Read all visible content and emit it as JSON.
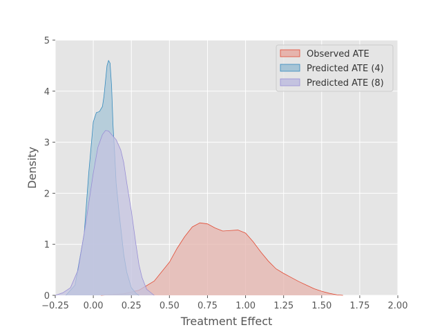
{
  "chart_data": {
    "type": "area",
    "title": "",
    "xlabel": "Treatment Effect",
    "ylabel": "Density",
    "xlim": [
      -0.25,
      2.0
    ],
    "ylim": [
      0,
      5
    ],
    "xticks": [
      -0.25,
      0.0,
      0.25,
      0.5,
      0.75,
      1.0,
      1.25,
      1.5,
      1.75,
      2.0
    ],
    "xtick_labels": [
      "−0.25",
      "0.00",
      "0.25",
      "0.50",
      "0.75",
      "1.00",
      "1.25",
      "1.50",
      "1.75",
      "2.00"
    ],
    "yticks": [
      0,
      1,
      2,
      3,
      4,
      5
    ],
    "ytick_labels": [
      "0",
      "1",
      "2",
      "3",
      "4",
      "5"
    ],
    "grid": true,
    "background": "#e5e5e5",
    "legend_position": "top-right",
    "series": [
      {
        "name": "Observed ATE",
        "color": "#e24a33",
        "fill": "#e6b4ad",
        "x": [
          0.05,
          0.2,
          0.3,
          0.4,
          0.5,
          0.55,
          0.6,
          0.65,
          0.7,
          0.75,
          0.8,
          0.85,
          0.9,
          0.95,
          1.0,
          1.05,
          1.1,
          1.15,
          1.2,
          1.25,
          1.3,
          1.35,
          1.4,
          1.45,
          1.5,
          1.55,
          1.6,
          1.64
        ],
        "values": [
          0.0,
          0.03,
          0.1,
          0.28,
          0.65,
          0.92,
          1.15,
          1.34,
          1.42,
          1.4,
          1.32,
          1.26,
          1.27,
          1.28,
          1.22,
          1.05,
          0.85,
          0.67,
          0.52,
          0.43,
          0.35,
          0.27,
          0.2,
          0.13,
          0.08,
          0.04,
          0.01,
          0.0
        ]
      },
      {
        "name": "Predicted ATE (4)",
        "color": "#348abd",
        "fill": "#a6c4d6",
        "x": [
          -0.18,
          -0.12,
          -0.06,
          -0.03,
          0.0,
          0.02,
          0.04,
          0.06,
          0.07,
          0.08,
          0.09,
          0.1,
          0.11,
          0.12,
          0.13,
          0.14,
          0.15,
          0.17,
          0.2,
          0.22,
          0.25,
          0.28,
          0.3
        ],
        "values": [
          0.0,
          0.2,
          1.2,
          2.4,
          3.4,
          3.58,
          3.6,
          3.7,
          3.9,
          4.2,
          4.5,
          4.6,
          4.55,
          4.1,
          3.3,
          2.8,
          2.2,
          1.6,
          0.8,
          0.45,
          0.15,
          0.04,
          0.0
        ]
      },
      {
        "name": "Predicted ATE (8)",
        "color": "#988ed5",
        "fill": "#c4c3e0",
        "x": [
          -0.25,
          -0.2,
          -0.15,
          -0.1,
          -0.05,
          0.0,
          0.03,
          0.06,
          0.08,
          0.1,
          0.12,
          0.15,
          0.18,
          0.2,
          0.22,
          0.25,
          0.28,
          0.3,
          0.32,
          0.35,
          0.4
        ],
        "values": [
          0.0,
          0.05,
          0.15,
          0.5,
          1.4,
          2.4,
          2.9,
          3.15,
          3.23,
          3.22,
          3.15,
          3.05,
          2.85,
          2.6,
          2.2,
          1.65,
          1.0,
          0.6,
          0.35,
          0.12,
          0.0
        ]
      }
    ]
  }
}
